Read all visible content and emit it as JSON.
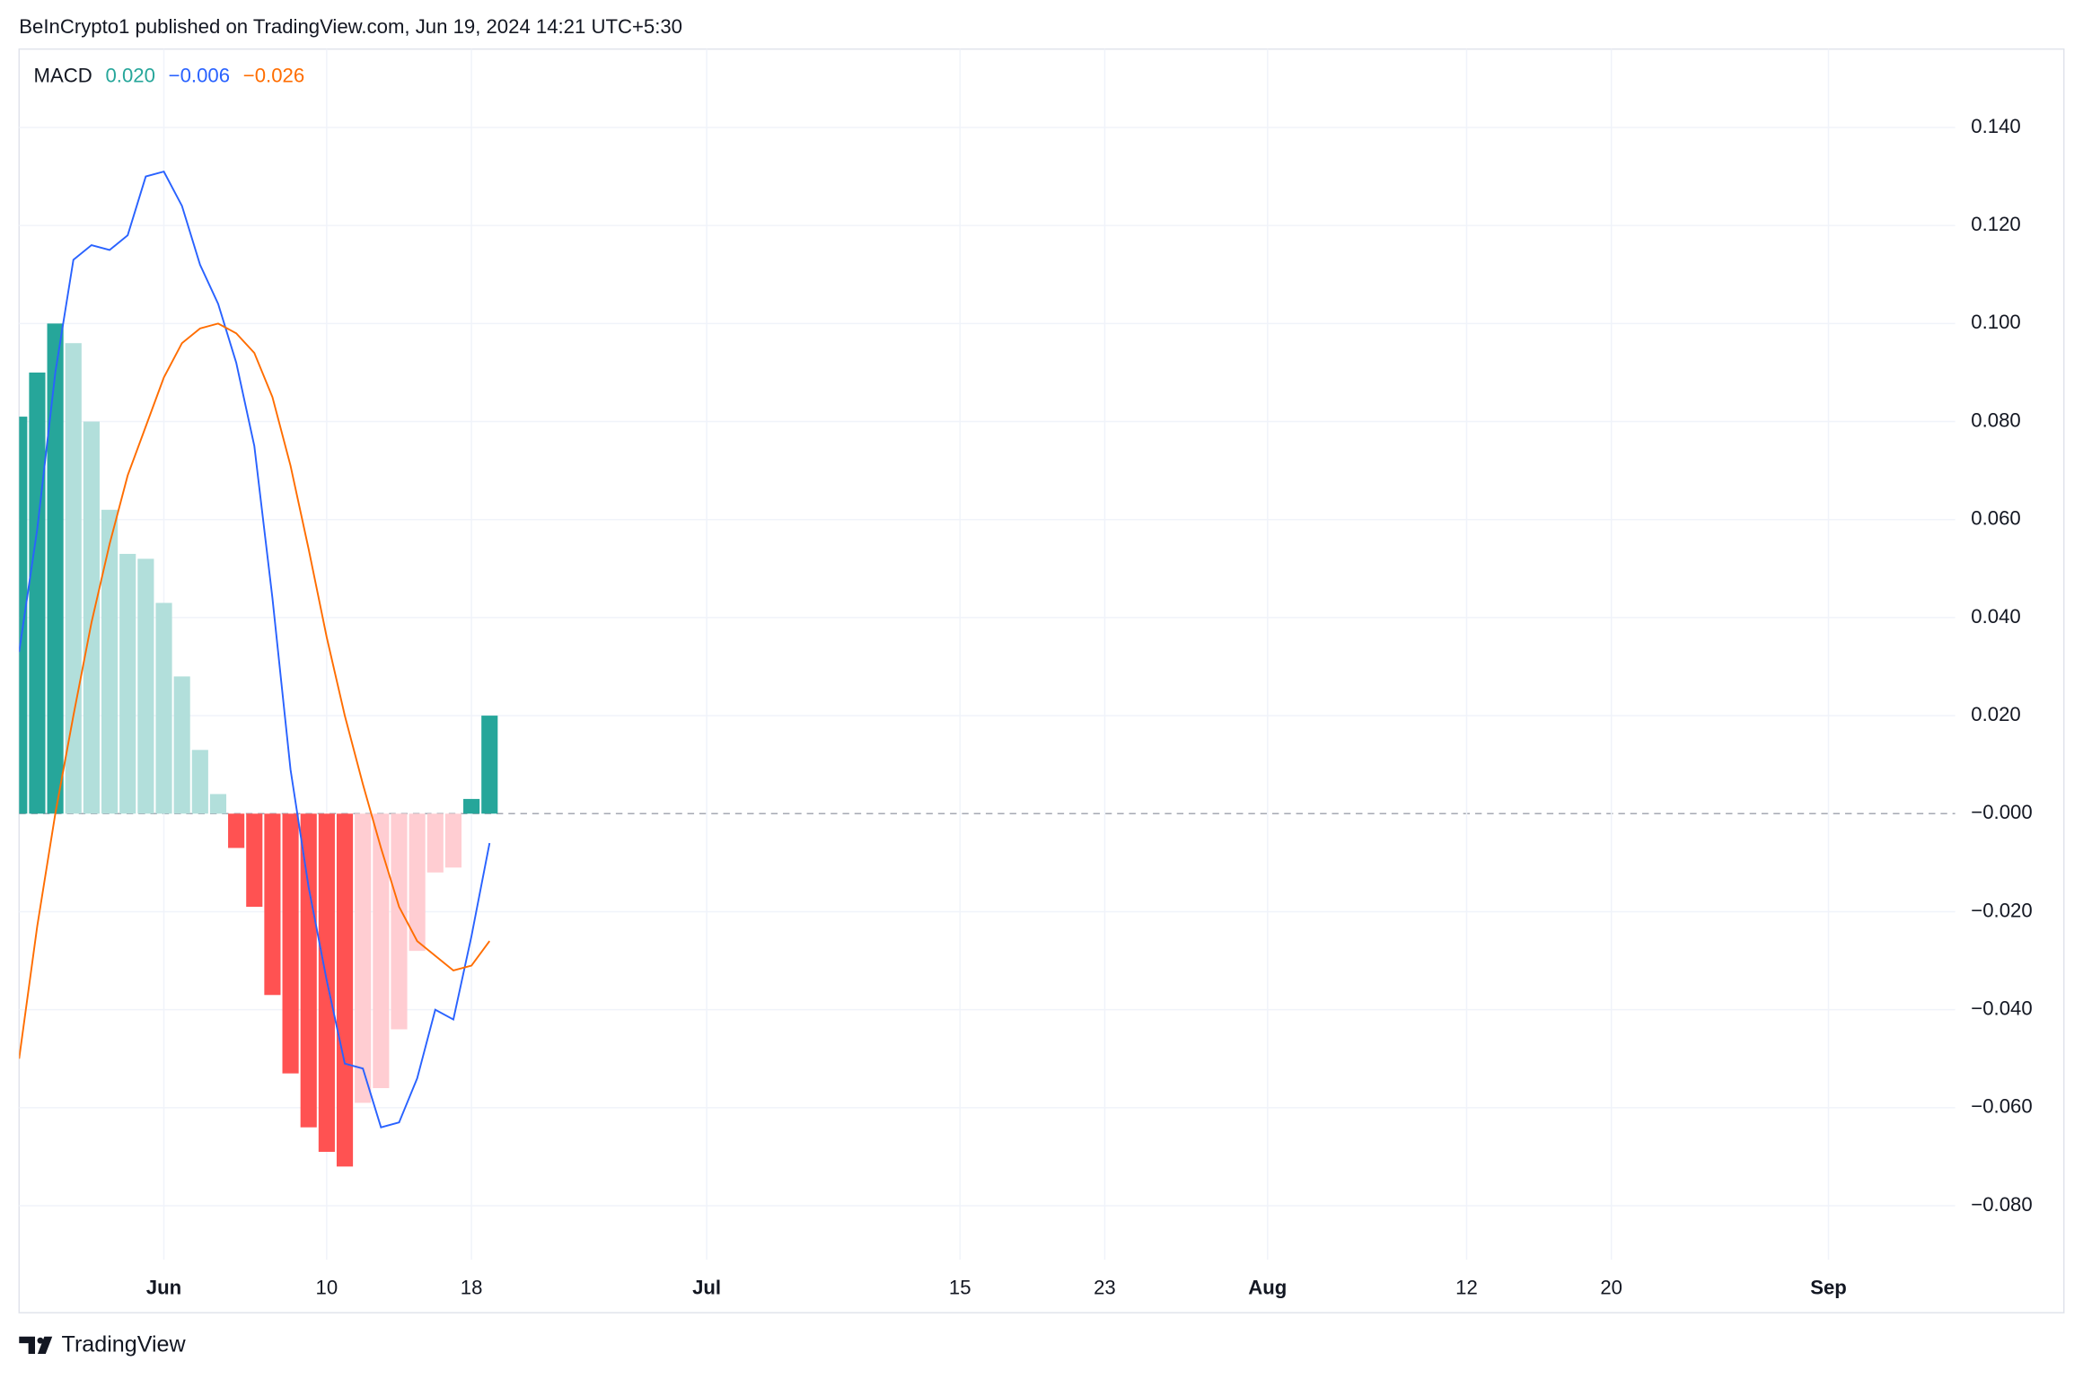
{
  "header": "BeInCrypto1 published on TradingView.com, Jun 19, 2024 14:21 UTC+5:30",
  "footer": "TradingView",
  "chart_data": {
    "type": "combo",
    "legend": {
      "name": "MACD",
      "values": [
        0.02,
        -0.006,
        -0.026
      ],
      "value_labels": [
        "0.020",
        "−0.006",
        "−0.026"
      ],
      "colors": [
        "#26a69a",
        "#2962ff",
        "#ff6d00"
      ]
    },
    "x": [
      "May 24",
      "May 25",
      "May 26",
      "May 27",
      "May 28",
      "May 29",
      "May 30",
      "May 31",
      "Jun 1",
      "Jun 2",
      "Jun 3",
      "Jun 4",
      "Jun 5",
      "Jun 6",
      "Jun 7",
      "Jun 8",
      "Jun 9",
      "Jun 10",
      "Jun 11",
      "Jun 12",
      "Jun 13",
      "Jun 14",
      "Jun 15",
      "Jun 16",
      "Jun 17",
      "Jun 18",
      "Jun 19"
    ],
    "series": [
      {
        "type": "bar",
        "values": [
          0.081,
          0.09,
          0.1,
          0.096,
          0.08,
          0.062,
          0.053,
          0.052,
          0.043,
          0.028,
          0.013,
          0.004,
          -0.007,
          -0.019,
          -0.037,
          -0.053,
          -0.064,
          -0.069,
          -0.072,
          -0.059,
          -0.056,
          -0.044,
          -0.028,
          -0.012,
          -0.011,
          0.003,
          0.02
        ],
        "colors": [
          "#26a69a",
          "#26a69a",
          "#26a69a",
          "#b2dfdb",
          "#b2dfdb",
          "#b2dfdb",
          "#b2dfdb",
          "#b2dfdb",
          "#b2dfdb",
          "#b2dfdb",
          "#b2dfdb",
          "#b2dfdb",
          "#ff5252",
          "#ff5252",
          "#ff5252",
          "#ff5252",
          "#ff5252",
          "#ff5252",
          "#ff5252",
          "#ffcdd2",
          "#ffcdd2",
          "#ffcdd2",
          "#ffcdd2",
          "#ffcdd2",
          "#ffcdd2",
          "#26a69a",
          "#26a69a"
        ]
      },
      {
        "type": "line",
        "color": "#2962ff",
        "values": [
          0.033,
          0.058,
          0.09,
          0.113,
          0.116,
          0.115,
          0.118,
          0.13,
          0.131,
          0.124,
          0.112,
          0.104,
          0.092,
          0.075,
          0.044,
          0.009,
          -0.015,
          -0.034,
          -0.051,
          -0.052,
          -0.064,
          -0.063,
          -0.054,
          -0.04,
          -0.042,
          -0.025,
          -0.006
        ]
      },
      {
        "type": "line",
        "color": "#ff6d00",
        "values": [
          -0.05,
          -0.023,
          0.0,
          0.02,
          0.039,
          0.055,
          0.069,
          0.079,
          0.089,
          0.096,
          0.099,
          0.1,
          0.098,
          0.094,
          0.085,
          0.071,
          0.054,
          0.036,
          0.02,
          0.006,
          -0.007,
          -0.019,
          -0.026,
          -0.029,
          -0.032,
          -0.031,
          -0.026
        ]
      }
    ],
    "xlim": [
      "May 24",
      "Sep 8"
    ],
    "xticks": [
      {
        "value": "Jun 1",
        "label": "Jun"
      },
      {
        "value": "Jun 10",
        "label": "10"
      },
      {
        "value": "Jun 18",
        "label": "18"
      },
      {
        "value": "Jul 1",
        "label": "Jul"
      },
      {
        "value": "Jul 15",
        "label": "15"
      },
      {
        "value": "Jul 23",
        "label": "23"
      },
      {
        "value": "Aug 1",
        "label": "Aug"
      },
      {
        "value": "Aug 12",
        "label": "12"
      },
      {
        "value": "Aug 20",
        "label": "20"
      },
      {
        "value": "Sep 1",
        "label": "Sep"
      }
    ],
    "ylim": [
      -0.091,
      0.156
    ],
    "yticks": [
      {
        "value": 0.14,
        "label": "0.140"
      },
      {
        "value": 0.12,
        "label": "0.120"
      },
      {
        "value": 0.1,
        "label": "0.100"
      },
      {
        "value": 0.08,
        "label": "0.080"
      },
      {
        "value": 0.06,
        "label": "0.060"
      },
      {
        "value": 0.04,
        "label": "0.040"
      },
      {
        "value": 0.02,
        "label": "0.020"
      },
      {
        "value": 0,
        "label": "−0.000"
      },
      {
        "value": -0.02,
        "label": "−0.020"
      },
      {
        "value": -0.04,
        "label": "−0.040"
      },
      {
        "value": -0.06,
        "label": "−0.060"
      },
      {
        "value": -0.08,
        "label": "−0.080"
      }
    ],
    "grid": true
  }
}
